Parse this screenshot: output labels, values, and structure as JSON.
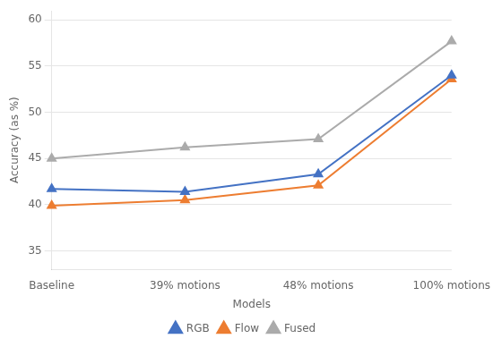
{
  "chart_data": {
    "type": "line",
    "categories": [
      "Baseline",
      "39% motions",
      "48% motions",
      "100% motions"
    ],
    "series": [
      {
        "name": "RGB",
        "color": "#4472C4",
        "marker": "triangle",
        "values": [
          41.7,
          41.4,
          43.3,
          54.0
        ]
      },
      {
        "name": "Flow",
        "color": "#ED7D31",
        "marker": "triangle",
        "values": [
          39.9,
          40.5,
          42.1,
          53.6
        ]
      },
      {
        "name": "Fused",
        "color": "#ABABAB",
        "marker": "triangle",
        "values": [
          45.0,
          46.2,
          47.1,
          57.7
        ]
      }
    ],
    "xlabel": "Models",
    "ylabel": "Accuracy (as %)",
    "ylim": [
      33,
      61
    ],
    "yticks": [
      35,
      40,
      45,
      50,
      55,
      60
    ],
    "grid": true,
    "legend": "bottom"
  }
}
